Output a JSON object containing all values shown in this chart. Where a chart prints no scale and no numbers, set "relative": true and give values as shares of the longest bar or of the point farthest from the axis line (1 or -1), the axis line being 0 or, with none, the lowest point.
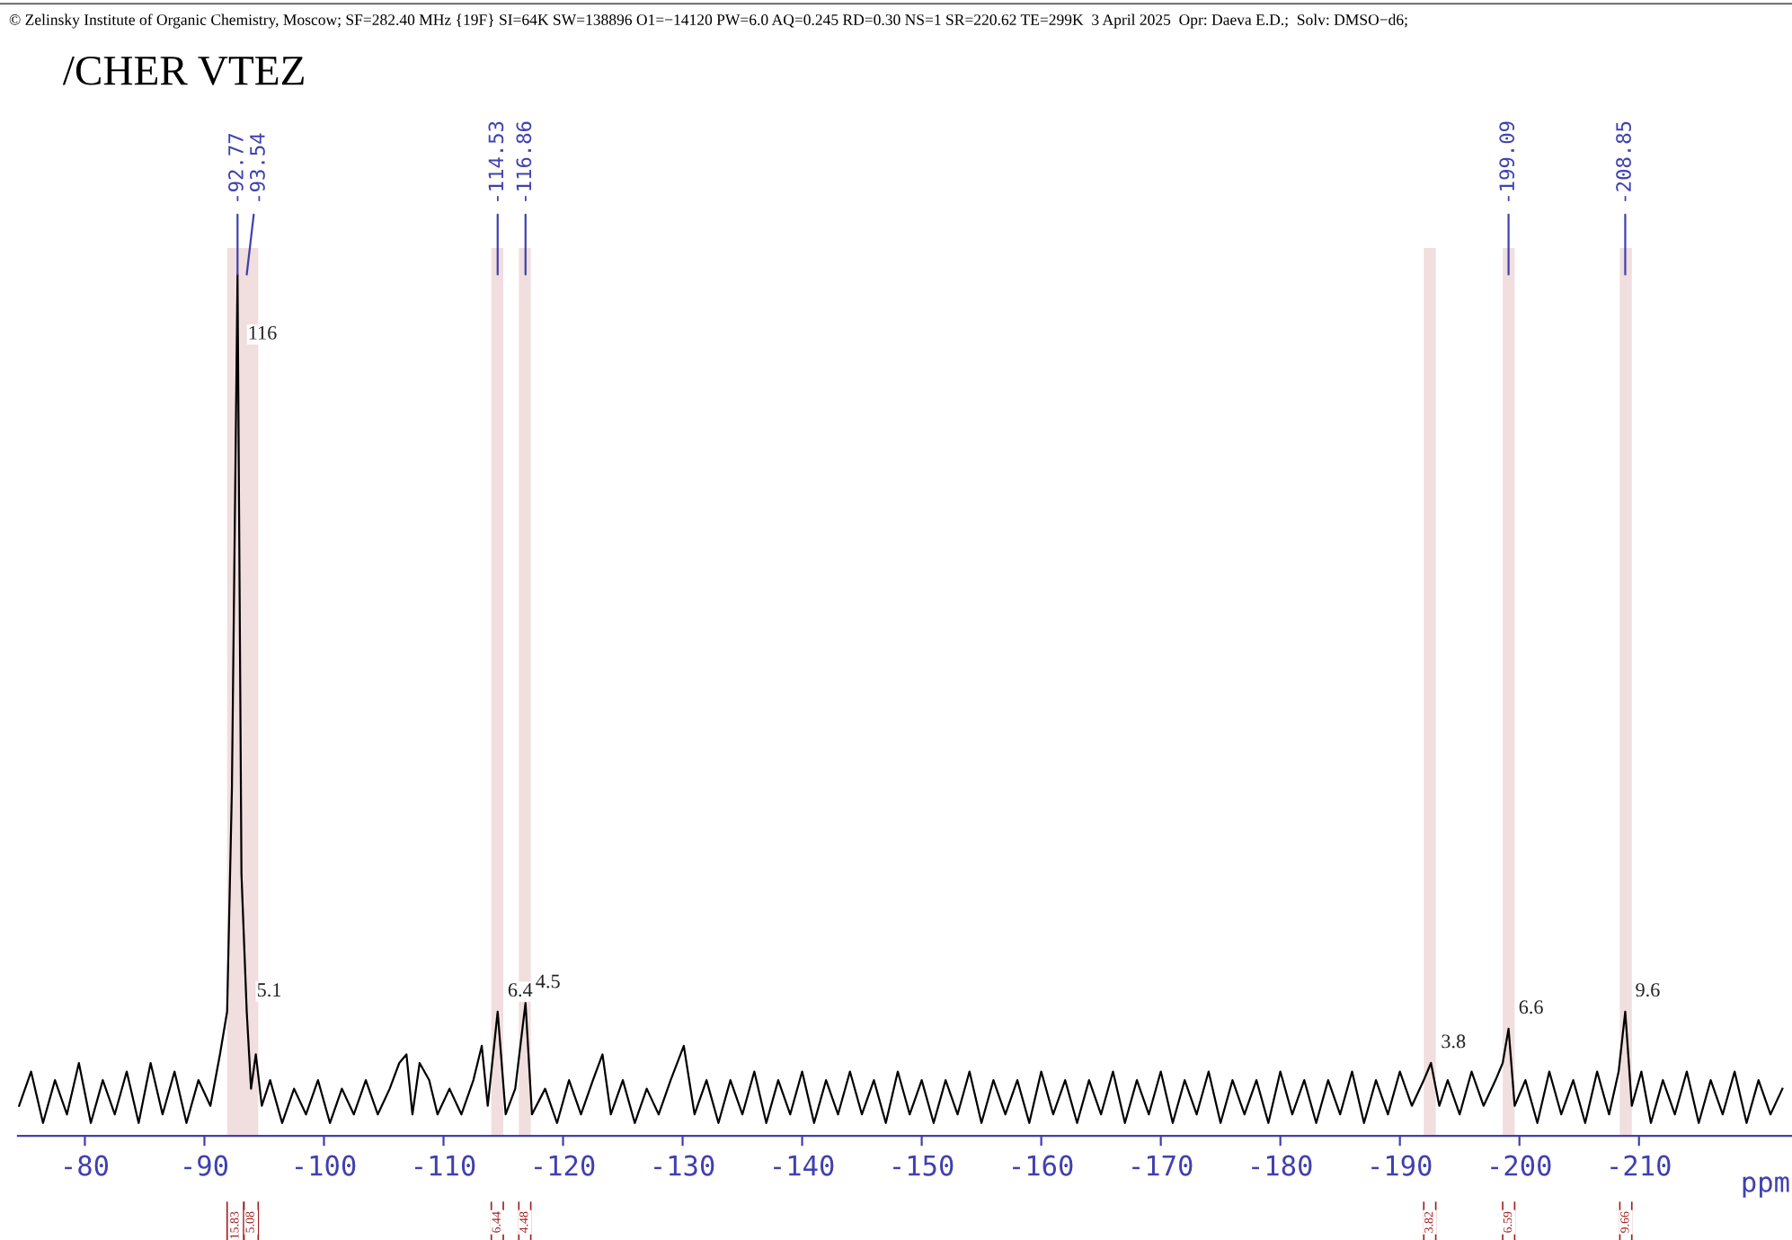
{
  "chart_data": {
    "type": "line",
    "relative": true,
    "title": "/CHER VTEZ",
    "subtitle": "© Zelinsky Institute of Organic Chemistry, Moscow; SF=282.40 MHz {19F} SI=64K SW=138896 O1=−14120 PW=6.0 AQ=0.245 RD=0.30 NS=1 SR=220.62 TE=299K  3 April 2025  Opr: Daeva E.D.;  Solv: DMSO−d6;",
    "xlabel": "ppm",
    "xlim": [
      -74.4,
      -222.8
    ],
    "xticks": [
      -80,
      -90,
      -100,
      -110,
      -120,
      -130,
      -140,
      -150,
      -160,
      -170,
      -180,
      -190,
      -200,
      -210
    ],
    "tick_labels": "x",
    "grid": false,
    "legend": false,
    "marker": "none",
    "line_style": "solid",
    "annotations": [
      {
        "text": "-92.77",
        "x": -92.77,
        "y": 1.0
      },
      {
        "text": "-93.54",
        "x": -93.54,
        "y": 1.0
      },
      {
        "text": "-114.53",
        "x": -114.53,
        "y": 1.0
      },
      {
        "text": "-116.86",
        "x": -116.86,
        "y": 1.0
      },
      {
        "text": "-199.09",
        "x": -199.09,
        "y": 1.0
      },
      {
        "text": "-208.85",
        "x": -208.85,
        "y": 1.0
      },
      {
        "text": "116",
        "x": -92.8,
        "y": 0.93
      },
      {
        "text": "5.1",
        "x": -93.54,
        "y": 0.14
      },
      {
        "text": "6.4",
        "x": -114.53,
        "y": 0.14
      },
      {
        "text": "4.5",
        "x": -116.86,
        "y": 0.15
      },
      {
        "text": "3.8",
        "x": -192.6,
        "y": 0.08
      },
      {
        "text": "6.6",
        "x": -199.09,
        "y": 0.12
      },
      {
        "text": "9.6",
        "x": -208.85,
        "y": 0.14
      }
    ],
    "bands": [
      {
        "axis": "x",
        "from": -91.9,
        "to": -93.3,
        "label": "15.83",
        "color": "#a02020"
      },
      {
        "axis": "x",
        "from": -93.3,
        "to": -94.5,
        "label": "5.08",
        "color": "#a02020"
      },
      {
        "axis": "x",
        "from": -114.0,
        "to": -115.0,
        "label": "6.44",
        "color": "#a02020"
      },
      {
        "axis": "x",
        "from": -116.3,
        "to": -117.3,
        "label": "4.48",
        "color": "#a02020"
      },
      {
        "axis": "x",
        "from": -192.0,
        "to": -193.0,
        "label": "3.82",
        "color": "#a02020"
      },
      {
        "axis": "x",
        "from": -198.6,
        "to": -199.6,
        "label": "6.59",
        "color": "#a02020"
      },
      {
        "axis": "x",
        "from": -208.4,
        "to": -209.4,
        "label": "9.66",
        "color": "#a02020"
      }
    ],
    "series": [
      {
        "color": "#000000",
        "x": [
          -74.5,
          -75.5,
          -76.5,
          -77.5,
          -78.5,
          -79.5,
          -80.5,
          -81.5,
          -82.5,
          -83.5,
          -84.5,
          -85.5,
          -86.5,
          -87.5,
          -88.5,
          -89.5,
          -90.5,
          -91.3,
          -91.9,
          -92.3,
          -92.77,
          -93.1,
          -93.54,
          -93.9,
          -94.3,
          -94.8,
          -95.5,
          -96.5,
          -97.5,
          -98.5,
          -99.5,
          -100.5,
          -101.5,
          -102.5,
          -103.5,
          -104.5,
          -105.5,
          -106.3,
          -106.9,
          -107.4,
          -108.0,
          -108.8,
          -109.5,
          -110.5,
          -111.5,
          -112.5,
          -113.2,
          -113.7,
          -114.53,
          -115.2,
          -116.0,
          -116.86,
          -117.4,
          -118.5,
          -119.5,
          -120.5,
          -121.5,
          -122.5,
          -123.3,
          -124.0,
          -125.0,
          -126.0,
          -127.0,
          -128.0,
          -129.0,
          -130.1,
          -131,
          -132,
          -133,
          -134,
          -135,
          -136,
          -137,
          -138,
          -139,
          -140,
          -141,
          -142,
          -143,
          -144,
          -145,
          -146,
          -147,
          -148,
          -149,
          -150,
          -151,
          -152,
          -153,
          -154,
          -155,
          -156,
          -157,
          -158,
          -159,
          -160,
          -161,
          -162,
          -163,
          -164,
          -165,
          -166,
          -167,
          -168,
          -169,
          -170,
          -171,
          -172,
          -173,
          -174,
          -175,
          -176,
          -177,
          -178,
          -179,
          -180,
          -181,
          -182,
          -183,
          -184,
          -185,
          -186,
          -187,
          -188,
          -189,
          -190,
          -191,
          -192,
          -192.6,
          -193.3,
          -194,
          -195,
          -196,
          -197,
          -198,
          -198.6,
          -199.09,
          -199.6,
          -200.5,
          -201.5,
          -202.5,
          -203.5,
          -204.5,
          -205.5,
          -206.5,
          -207.5,
          -208.3,
          -208.85,
          -209.4,
          -210.2,
          -211,
          -212,
          -213,
          -214,
          -215,
          -216,
          -217,
          -218,
          -219,
          -220,
          -221,
          -222
        ],
        "values": [
          0.03,
          0.07,
          0.01,
          0.06,
          0.02,
          0.08,
          0.01,
          0.06,
          0.02,
          0.07,
          0.01,
          0.08,
          0.02,
          0.07,
          0.01,
          0.06,
          0.03,
          0.09,
          0.14,
          0.4,
          1.0,
          0.3,
          0.14,
          0.05,
          0.09,
          0.03,
          0.06,
          0.01,
          0.05,
          0.02,
          0.06,
          0.01,
          0.05,
          0.02,
          0.06,
          0.02,
          0.05,
          0.08,
          0.09,
          0.02,
          0.08,
          0.06,
          0.02,
          0.05,
          0.02,
          0.06,
          0.1,
          0.03,
          0.14,
          0.02,
          0.05,
          0.15,
          0.02,
          0.05,
          0.01,
          0.06,
          0.02,
          0.06,
          0.09,
          0.02,
          0.06,
          0.01,
          0.05,
          0.02,
          0.06,
          0.1,
          0.02,
          0.06,
          0.01,
          0.06,
          0.02,
          0.07,
          0.01,
          0.06,
          0.02,
          0.07,
          0.01,
          0.06,
          0.02,
          0.07,
          0.02,
          0.06,
          0.01,
          0.07,
          0.02,
          0.06,
          0.01,
          0.06,
          0.02,
          0.07,
          0.01,
          0.06,
          0.02,
          0.06,
          0.01,
          0.07,
          0.02,
          0.06,
          0.01,
          0.06,
          0.02,
          0.07,
          0.01,
          0.06,
          0.02,
          0.07,
          0.01,
          0.06,
          0.02,
          0.07,
          0.01,
          0.06,
          0.02,
          0.06,
          0.01,
          0.07,
          0.02,
          0.06,
          0.01,
          0.06,
          0.02,
          0.07,
          0.01,
          0.06,
          0.02,
          0.07,
          0.03,
          0.06,
          0.08,
          0.03,
          0.06,
          0.02,
          0.07,
          0.03,
          0.06,
          0.08,
          0.12,
          0.03,
          0.06,
          0.01,
          0.07,
          0.02,
          0.06,
          0.01,
          0.07,
          0.02,
          0.07,
          0.14,
          0.03,
          0.07,
          0.01,
          0.06,
          0.02,
          0.07,
          0.01,
          0.06,
          0.02,
          0.07,
          0.01,
          0.06,
          0.02,
          0.05
        ]
      }
    ]
  }
}
